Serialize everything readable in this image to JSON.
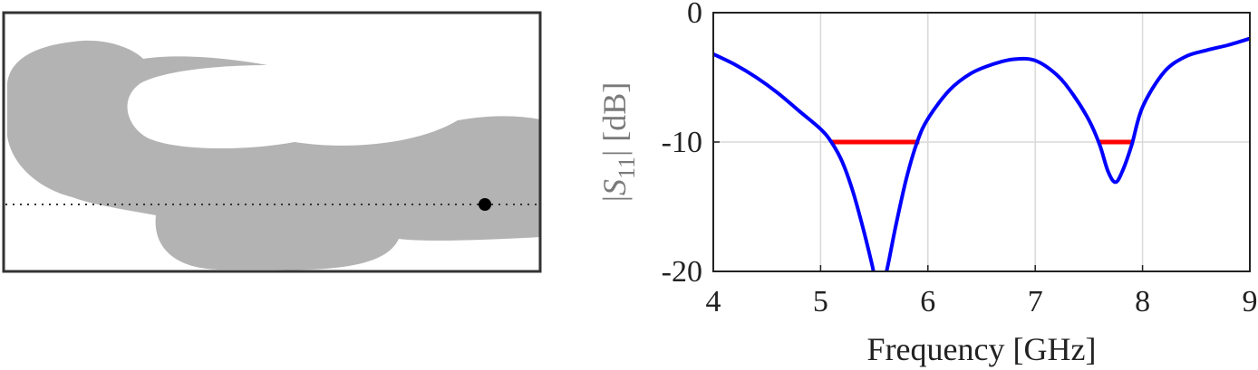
{
  "colors": {
    "shape_fill": "#b3b3b3",
    "frame": "#333333",
    "curve": "#0000ff",
    "band": "#ff0000",
    "grid": "#d9d9d9",
    "marker": "#000000"
  },
  "chart_data": {
    "type": "line",
    "xlabel": "Frequency [GHz]",
    "ylabel": {
      "bar_left": "|",
      "symbol": "S",
      "subscript": "11",
      "bar_right": "|",
      "unit": " [dB]"
    },
    "xlim": [
      4,
      9
    ],
    "ylim": [
      -20,
      0
    ],
    "xticks": [
      4,
      5,
      6,
      7,
      8,
      9
    ],
    "xtick_labels": [
      "4",
      "5",
      "6",
      "7",
      "8",
      "9"
    ],
    "yticks": [
      0,
      -10,
      -20
    ],
    "ytick_labels": [
      "0",
      "-10",
      "-20"
    ],
    "grid": true,
    "series": [
      {
        "color": "#0000ff",
        "x": [
          4.0,
          4.2,
          4.4,
          4.6,
          4.8,
          5.0,
          5.1,
          5.2,
          5.3,
          5.4,
          5.48,
          5.55,
          5.62,
          5.7,
          5.8,
          5.9,
          6.0,
          6.2,
          6.4,
          6.6,
          6.8,
          7.0,
          7.2,
          7.35,
          7.5,
          7.6,
          7.68,
          7.75,
          7.82,
          7.9,
          8.0,
          8.2,
          8.4,
          8.6,
          8.8,
          9.0
        ],
        "y": [
          -3.2,
          -4.0,
          -5.0,
          -6.2,
          -7.6,
          -9.0,
          -10.0,
          -11.5,
          -13.8,
          -16.8,
          -19.5,
          -22.0,
          -19.8,
          -16.5,
          -12.8,
          -10.0,
          -8.2,
          -6.0,
          -4.7,
          -4.0,
          -3.6,
          -3.7,
          -4.8,
          -6.3,
          -8.3,
          -10.2,
          -12.3,
          -13.1,
          -12.1,
          -10.2,
          -7.3,
          -4.6,
          -3.4,
          -2.9,
          -2.5,
          -2.0
        ]
      }
    ],
    "bands": [
      {
        "color": "#ff0000",
        "x_start": 5.1,
        "x_end": 5.92,
        "y": -10
      },
      {
        "color": "#ff0000",
        "x_start": 7.6,
        "x_end": 7.92,
        "y": -10
      }
    ]
  }
}
